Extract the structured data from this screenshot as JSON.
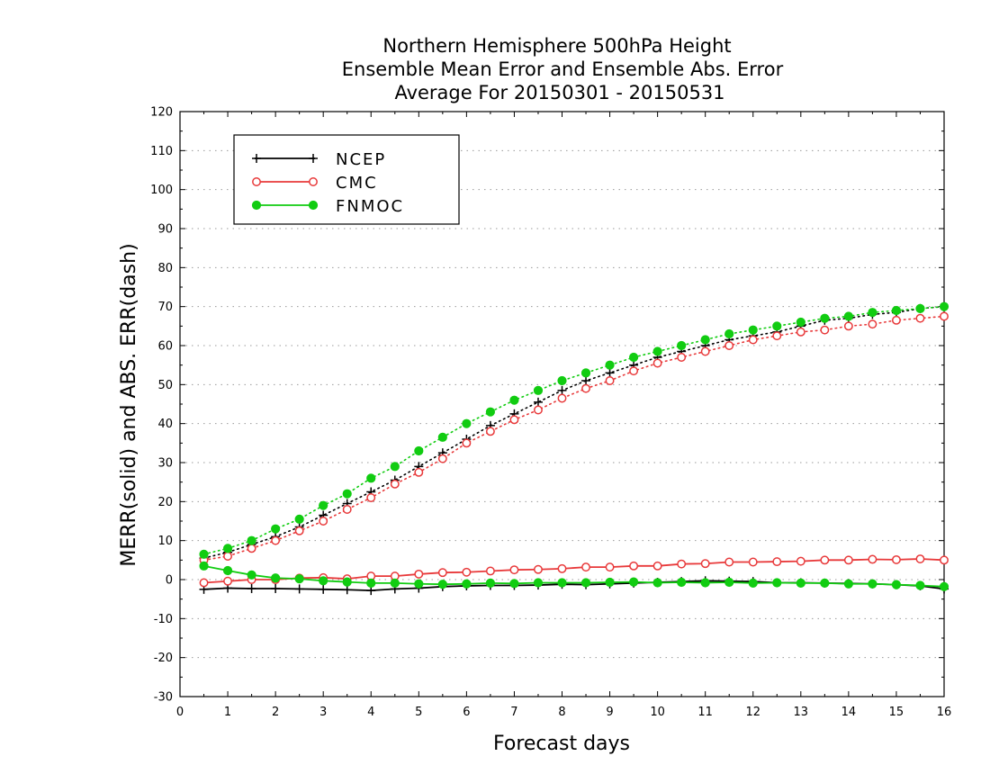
{
  "chart_data": {
    "type": "line",
    "title": [
      "Northern Hemisphere 500hPa Height",
      "Ensemble Mean Error and Ensemble Abs. Error",
      "Average For 20150301 - 20150531"
    ],
    "xlabel": "Forecast days",
    "ylabel": "MERR(solid) and ABS. ERR(dash)",
    "xlim": [
      0,
      16
    ],
    "ylim": [
      -30,
      120
    ],
    "xticks": [
      "0",
      "1",
      "2",
      "3",
      "4",
      "5",
      "6",
      "7",
      "8",
      "9",
      "10",
      "11",
      "12",
      "13",
      "14",
      "15",
      "16"
    ],
    "yticks": [
      "-30",
      "-20",
      "-10",
      "0",
      "10",
      "20",
      "30",
      "40",
      "50",
      "60",
      "70",
      "80",
      "90",
      "100",
      "110",
      "120"
    ],
    "grid": "horizontal dotted",
    "legend_position": "top-left",
    "x": [
      0.5,
      1,
      1.5,
      2,
      2.5,
      3,
      3.5,
      4,
      4.5,
      5,
      5.5,
      6,
      6.5,
      7,
      7.5,
      8,
      8.5,
      9,
      9.5,
      10,
      10.5,
      11,
      11.5,
      12,
      12.5,
      13,
      13.5,
      14,
      14.5,
      15,
      15.5,
      16
    ],
    "series": [
      {
        "name": "NCEP",
        "color": "#000000",
        "marker": "plus",
        "merr": [
          -2.5,
          -2.2,
          -2.3,
          -2.3,
          -2.4,
          -2.5,
          -2.6,
          -2.8,
          -2.4,
          -2.2,
          -1.8,
          -1.6,
          -1.5,
          -1.5,
          -1.4,
          -1.2,
          -1.3,
          -1.1,
          -0.9,
          -0.7,
          -0.5,
          -0.3,
          -0.4,
          -0.5,
          -0.8,
          -0.8,
          -0.9,
          -1.0,
          -1.1,
          -1.3,
          -1.6,
          -2.4
        ],
        "abs_err": [
          5.5,
          7.0,
          9.0,
          11.0,
          13.5,
          16.5,
          19.5,
          22.5,
          25.5,
          29.0,
          32.5,
          36.0,
          39.5,
          42.5,
          45.5,
          48.5,
          51.0,
          53.0,
          55.0,
          57.0,
          58.5,
          60.0,
          61.5,
          62.5,
          63.5,
          65.0,
          66.5,
          67.0,
          68.0,
          68.5,
          69.5,
          70.0
        ]
      },
      {
        "name": "CMC",
        "color": "#e8393a",
        "marker": "circle",
        "merr": [
          -0.8,
          -0.4,
          0.0,
          0.0,
          0.4,
          0.5,
          0.2,
          0.9,
          0.9,
          1.4,
          1.8,
          1.9,
          2.2,
          2.5,
          2.6,
          2.8,
          3.2,
          3.2,
          3.5,
          3.5,
          4.0,
          4.1,
          4.5,
          4.5,
          4.6,
          4.7,
          5.0,
          5.0,
          5.2,
          5.1,
          5.3,
          5.0
        ],
        "abs_err": [
          5.0,
          6.0,
          8.0,
          10.0,
          12.5,
          15.0,
          18.0,
          21.0,
          24.5,
          27.5,
          31.0,
          35.0,
          38.0,
          41.0,
          43.5,
          46.5,
          49.0,
          51.0,
          53.5,
          55.5,
          57.0,
          58.5,
          60.0,
          61.5,
          62.5,
          63.5,
          64.0,
          65.0,
          65.5,
          66.5,
          67.0,
          67.5
        ]
      },
      {
        "name": "FNMOC",
        "color": "#11cc11",
        "marker": "dot",
        "merr": [
          3.5,
          2.3,
          1.2,
          0.4,
          0.2,
          -0.3,
          -0.6,
          -0.9,
          -0.9,
          -1.1,
          -1.2,
          -1.1,
          -0.9,
          -1.0,
          -0.8,
          -0.8,
          -0.8,
          -0.7,
          -0.6,
          -0.8,
          -0.7,
          -0.8,
          -0.7,
          -0.9,
          -0.8,
          -0.9,
          -0.9,
          -1.1,
          -1.1,
          -1.3,
          -1.5,
          -1.8
        ],
        "abs_err": [
          6.5,
          8.0,
          10.0,
          13.0,
          15.5,
          19.0,
          22.0,
          26.0,
          29.0,
          33.0,
          36.5,
          40.0,
          43.0,
          46.0,
          48.5,
          51.0,
          53.0,
          55.0,
          57.0,
          58.5,
          60.0,
          61.5,
          63.0,
          64.0,
          65.0,
          66.0,
          67.0,
          67.5,
          68.5,
          69.0,
          69.5,
          70.0
        ]
      }
    ]
  }
}
